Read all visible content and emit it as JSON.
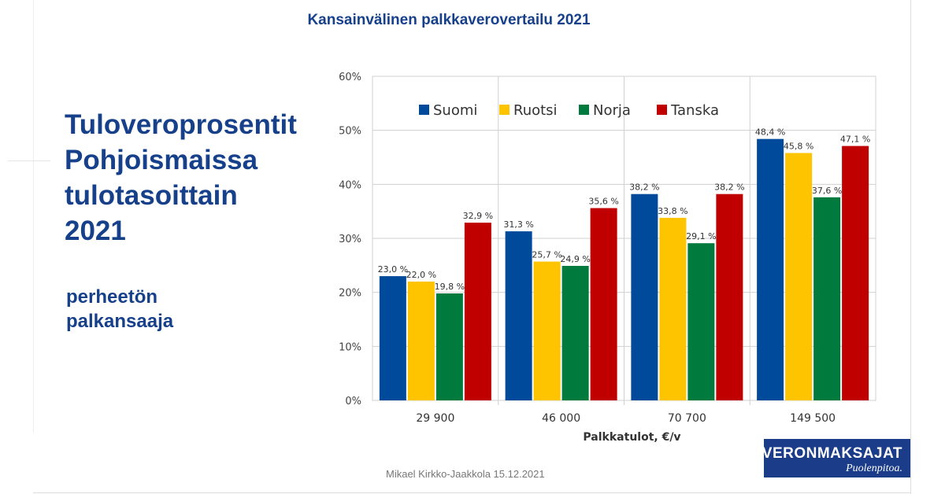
{
  "slide_title": "Kansainvälinen palkkaverovertailu 2021",
  "heading_lines": [
    "Tuloveroprosentit",
    "Pohjoismaissa",
    "tulotasoittain",
    "2021"
  ],
  "subheading_lines": [
    "perheetön",
    "palkansaaja"
  ],
  "footer": {
    "credit": "Mikael Kirkko-Jaakkola  15.12.2021"
  },
  "logo": {
    "name": "VERONMAKSAJAT",
    "tagline": "Puolenpitoa."
  },
  "chart_data": {
    "type": "bar",
    "title": "",
    "xlabel": "Palkkatulot, €/v",
    "ylabel": "",
    "categories": [
      "29 900",
      "46 000",
      "70 700",
      "149 500"
    ],
    "series": [
      {
        "name": "Suomi",
        "color": "#004a9c",
        "values": [
          23.0,
          31.3,
          38.2,
          48.4
        ],
        "labels": [
          "23,0 %",
          "31,3 %",
          "38,2 %",
          "48,4 %"
        ]
      },
      {
        "name": "Ruotsi",
        "color": "#ffc400",
        "values": [
          22.0,
          25.7,
          33.8,
          45.8
        ],
        "labels": [
          "22,0 %",
          "25,7 %",
          "33,8 %",
          "45,8 %"
        ]
      },
      {
        "name": "Norja",
        "color": "#007a3d",
        "values": [
          19.8,
          24.9,
          29.1,
          37.6
        ],
        "labels": [
          "19,8 %",
          "24,9 %",
          "29,1 %",
          "37,6 %"
        ]
      },
      {
        "name": "Tanska",
        "color": "#c00000",
        "values": [
          32.9,
          35.6,
          38.2,
          47.1
        ],
        "labels": [
          "32,9 %",
          "35,6 %",
          "38,2 %",
          "47,1 %"
        ]
      }
    ],
    "ylim": [
      0,
      60
    ],
    "yticks": [
      0,
      10,
      20,
      30,
      40,
      50,
      60
    ],
    "ytick_labels": [
      "0%",
      "10%",
      "20%",
      "30%",
      "40%",
      "50%",
      "60%"
    ],
    "grid": true,
    "legend_position": "top"
  }
}
